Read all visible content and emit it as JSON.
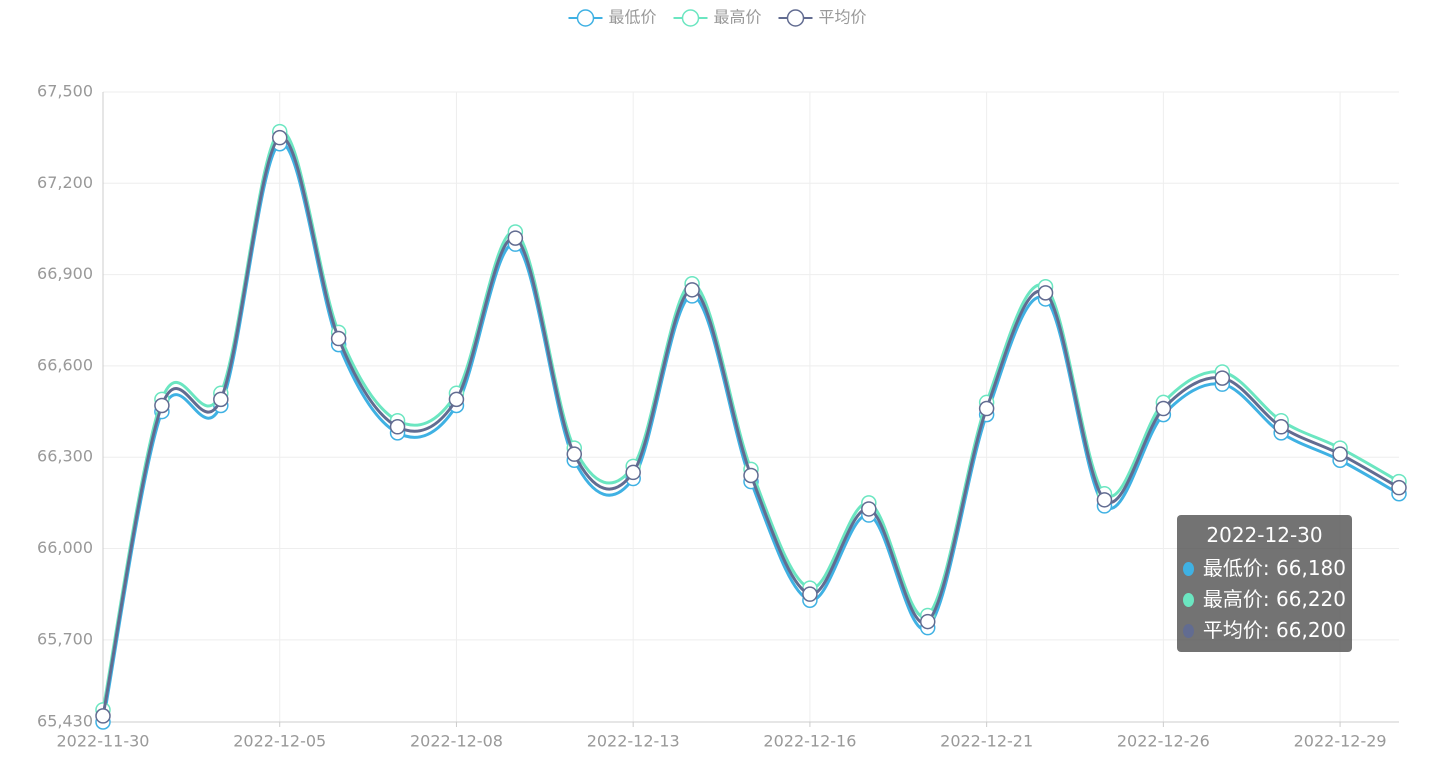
{
  "chart_data": {
    "type": "line",
    "smooth": true,
    "grid": true,
    "legend_position": "top",
    "categories": [
      "2022-11-30",
      null,
      null,
      "2022-12-05",
      null,
      null,
      "2022-12-08",
      null,
      null,
      "2022-12-13",
      null,
      null,
      "2022-12-16",
      null,
      null,
      "2022-12-21",
      null,
      null,
      "2022-12-26",
      null,
      null,
      "2022-12-29",
      "2022-12-30"
    ],
    "series": [
      {
        "name": "最低价",
        "color": "#3fb1e3",
        "values": [
          65430,
          66450,
          66470,
          67330,
          66670,
          66380,
          66470,
          67000,
          66290,
          66230,
          66830,
          66220,
          65830,
          66110,
          65740,
          66440,
          66820,
          66140,
          66440,
          66540,
          66380,
          66290,
          66180
        ],
        "value_labels": [
          null,
          null,
          null,
          null,
          null,
          null,
          null,
          null,
          null,
          null,
          null,
          null,
          null,
          null,
          null,
          null,
          null,
          null,
          null,
          null,
          null,
          null,
          "66,180"
        ]
      },
      {
        "name": "最高价",
        "color": "#6be6c1",
        "values": [
          65470,
          66490,
          66510,
          67370,
          66710,
          66420,
          66510,
          67040,
          66330,
          66270,
          66870,
          66260,
          65870,
          66150,
          65780,
          66480,
          66860,
          66180,
          66480,
          66580,
          66420,
          66330,
          66220
        ],
        "value_labels": [
          null,
          null,
          null,
          null,
          null,
          null,
          null,
          null,
          null,
          null,
          null,
          null,
          null,
          null,
          null,
          null,
          null,
          null,
          null,
          null,
          null,
          null,
          "66,220"
        ]
      },
      {
        "name": "平均价",
        "color": "#626c91",
        "values": [
          65450,
          66470,
          66490,
          67350,
          66690,
          66400,
          66490,
          67020,
          66310,
          66250,
          66850,
          66240,
          65850,
          66130,
          65760,
          66460,
          66840,
          66160,
          66460,
          66560,
          66400,
          66310,
          66200
        ],
        "value_labels": [
          null,
          null,
          null,
          null,
          null,
          null,
          null,
          null,
          null,
          null,
          null,
          null,
          null,
          null,
          null,
          null,
          null,
          null,
          null,
          null,
          null,
          null,
          "66,200"
        ]
      }
    ],
    "ylim": [
      65430,
      67500
    ],
    "yticks": [
      {
        "value": 65430,
        "label": "65,430"
      },
      {
        "value": 65700,
        "label": "65,700"
      },
      {
        "value": 66000,
        "label": "66,000"
      },
      {
        "value": 66300,
        "label": "66,300"
      },
      {
        "value": 66600,
        "label": "66,600"
      },
      {
        "value": 66900,
        "label": "66,900"
      },
      {
        "value": 67200,
        "label": "67,200"
      },
      {
        "value": 67500,
        "label": "67,500"
      }
    ]
  }
}
